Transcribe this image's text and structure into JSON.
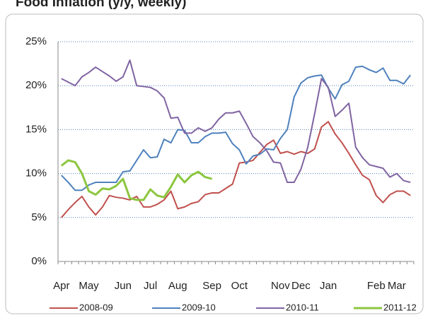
{
  "chart_data": {
    "type": "line",
    "title": "Food Inflation (y/y, weekly)",
    "categories": [
      "Apr",
      null,
      null,
      null,
      "May",
      null,
      null,
      null,
      null,
      "Jun",
      null,
      null,
      null,
      "Jul",
      null,
      null,
      null,
      "Aug",
      null,
      null,
      null,
      null,
      "Sep",
      null,
      null,
      null,
      "Oct",
      null,
      null,
      null,
      null,
      null,
      "Nov",
      null,
      null,
      "Dec",
      null,
      null,
      null,
      "Jan",
      null,
      null,
      null,
      null,
      null,
      null,
      "Feb",
      null,
      null,
      "Mar",
      null,
      null
    ],
    "series": [
      {
        "name": "2008-09",
        "color": "#c0504d",
        "values": [
          5,
          5.9,
          6.7,
          7.4,
          6.2,
          5.3,
          6.2,
          7.5,
          7.3,
          7.2,
          7.0,
          7.4,
          6.2,
          6.2,
          6.5,
          7,
          8,
          6,
          6.2,
          6.6,
          6.8,
          7.6,
          7.8,
          7.8,
          8.3,
          8.8,
          11.2,
          11.3,
          11.5,
          12.4,
          13.3,
          13.8,
          12.3,
          12.5,
          12.2,
          12.5,
          12.3,
          12.8,
          15.3,
          15.9,
          14.5,
          13.5,
          12.3,
          11,
          9.8,
          9.3,
          7.5,
          6.7,
          7.6,
          8,
          8,
          7.5
        ]
      },
      {
        "name": "2009-10",
        "color": "#4f81bd",
        "values": [
          9.8,
          9,
          8.1,
          8.1,
          8.7,
          9,
          9,
          9,
          9,
          10.2,
          10.3,
          11.5,
          12.7,
          11.8,
          11.9,
          13.9,
          13.5,
          15,
          14.9,
          13.5,
          13.5,
          14.2,
          14.6,
          14.6,
          14.7,
          13.4,
          12.7,
          11.1,
          12,
          12.2,
          12.8,
          12.7,
          14,
          15,
          18.7,
          20.3,
          20.9,
          21.1,
          21.2,
          19.7,
          18.5,
          20.1,
          20.5,
          22.1,
          22.2,
          21.8,
          21.5,
          22,
          20.6,
          20.6,
          20.2,
          21.2
        ]
      },
      {
        "name": "2010-11",
        "color": "#8064a2",
        "values": [
          20.8,
          20.4,
          20,
          21,
          21.5,
          22.1,
          21.6,
          21.1,
          20.5,
          21,
          22.9,
          20,
          19.9,
          19.8,
          19.4,
          18.6,
          16.3,
          16.4,
          14.6,
          14.6,
          15.2,
          14.8,
          15.2,
          16.2,
          16.9,
          16.9,
          17.1,
          15.7,
          14.2,
          13.5,
          12.6,
          11.3,
          11.2,
          9,
          9,
          10.5,
          13,
          16.8,
          20.8,
          19.8,
          16.5,
          17.2,
          18,
          13,
          11.8,
          11,
          10.8,
          10.6,
          9.6,
          10,
          9.2,
          9
        ]
      },
      {
        "name": "2011-12",
        "color": "#8cc63f",
        "values": [
          10.9,
          11.5,
          11.3,
          10,
          8,
          7.6,
          8.3,
          8.2,
          8.6,
          9.4,
          7.2,
          7,
          7,
          8.2,
          7.5,
          7.3,
          8.5,
          9.9,
          9,
          9.8,
          10.2,
          9.6,
          9.4,
          null,
          null,
          null,
          null,
          null,
          null,
          null,
          null,
          null,
          null,
          null,
          null,
          null,
          null,
          null,
          null,
          null,
          null,
          null,
          null,
          null,
          null,
          null,
          null,
          null,
          null,
          null,
          null,
          null
        ]
      }
    ],
    "ylim": [
      0,
      25
    ],
    "yticks": [
      {
        "value": 0,
        "label": "0%"
      },
      {
        "value": 5,
        "label": "5%"
      },
      {
        "value": 10,
        "label": "10%"
      },
      {
        "value": 15,
        "label": "15%"
      },
      {
        "value": 20,
        "label": "20%"
      },
      {
        "value": 25,
        "label": "25%"
      }
    ],
    "grid": true,
    "legend": "bottom"
  }
}
